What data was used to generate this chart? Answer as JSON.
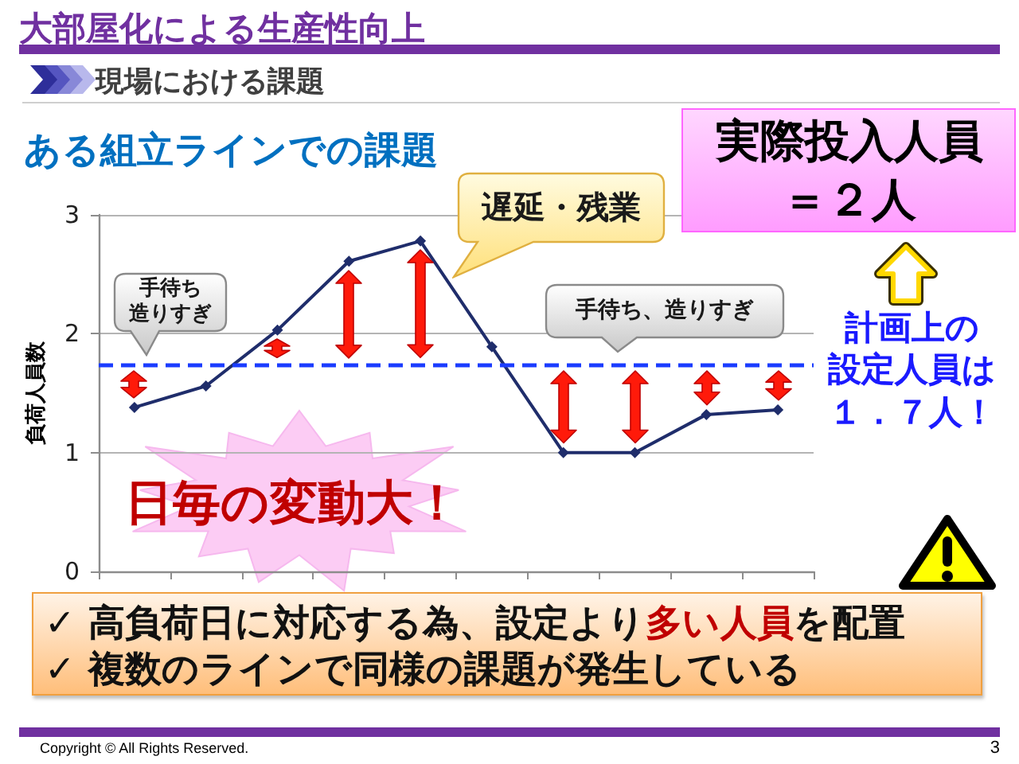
{
  "chart_data": {
    "type": "line",
    "title": "大部屋化による生産性向上",
    "subtitle": "現場における課題",
    "ylabel": "負荷人員数",
    "annotations": [
      "ある組立ラインでの課題",
      "手待ち",
      "造りすぎ",
      "遅延・残業",
      "手待ち、造りすぎ",
      "実際投入人員",
      "＝２人",
      "計画上の",
      "設定人員は",
      "１．７人！",
      "日毎の変動大！",
      "✓ 高負荷日に対応する為、設定より",
      "多い人員",
      "を配置",
      "✓ 複数のラインで同様の課題が発生している",
      "Copyright © All Rights Reserved.",
      "3"
    ],
    "categories": [
      null,
      null,
      null,
      null,
      null,
      null,
      null,
      null,
      null,
      null
    ],
    "series": [
      {
        "color": "#1f2d6b",
        "values": [
          1.38,
          1.56,
          2.03,
          2.61,
          2.78,
          1.89,
          1.0,
          1.0,
          1.32,
          1.36
        ]
      }
    ],
    "ylim": [
      0,
      3
    ],
    "yticks": [
      0,
      1,
      2,
      3
    ],
    "grid": "y",
    "marker": "diamond",
    "line_style": "solid",
    "tick_labels": "y",
    "ref_lines": [
      {
        "axis": "y",
        "value": 1.74,
        "color": "#1a3cff",
        "line_style": "dashed"
      }
    ]
  }
}
